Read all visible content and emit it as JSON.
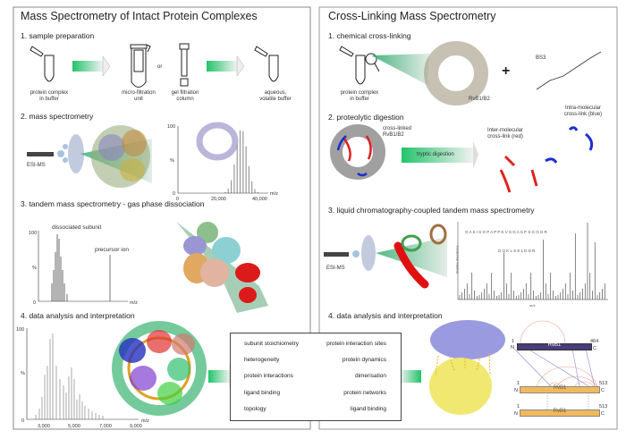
{
  "left_panel": {
    "title": "Mass Spectrometry of Intact Protein Complexes",
    "step1": {
      "title": "1. sample preparation",
      "labels": [
        "protein complex",
        "in buffer",
        "micro-filtration",
        "unit",
        "gel filtration",
        "column",
        "aqueous,",
        "volatile buffer"
      ],
      "or": "or"
    },
    "step2": {
      "title": "2. mass spectrometry",
      "esi": "ESI-MS",
      "y_ticks": [
        "100",
        "%",
        "0"
      ],
      "x_ticks": [
        "0",
        "20,000",
        "40,000"
      ],
      "x_unit": "m/z"
    },
    "step3": {
      "title": "3. tandem mass spectrometry - gas phase dissociation",
      "dissociated": "dissociated subunit",
      "precursor": "precursor ion",
      "y_ticks": [
        "100",
        "%",
        "0"
      ],
      "x_unit": "m/z"
    },
    "step4": {
      "title": "4. data analysis and interpretation",
      "y_ticks": [
        "100",
        "%",
        "0"
      ],
      "x_ticks": [
        "3,000",
        "5,000",
        "7,000",
        "9,000"
      ],
      "x_unit": "m/z"
    }
  },
  "right_panel": {
    "title": "Cross-Linking Mass Spectrometry",
    "step1": {
      "title": "1. chemical cross-linking",
      "tube_label": [
        "protein complex",
        "in buffer"
      ],
      "complex": "RvB1/B2",
      "plus": "+",
      "reagent": "BS3"
    },
    "step2": {
      "title": "2. proteolytic digestion",
      "complex_label": [
        "cross-linked",
        "RvB1/B2"
      ],
      "arrow": "tryptic digestion",
      "inter": [
        "Inter-molecular",
        "cross-link (red)"
      ],
      "intra": [
        "Intra-molecular",
        "cross-link (blue)"
      ]
    },
    "step3": {
      "title": "3. liquid chromatography-coupled tandem mass spectrometry",
      "esi": "ESI-MS",
      "peptide1": "G A S I S G P A P P K V S G A S P S G G D R",
      "peptide2": "D Q K L S E L D D R",
      "y_label": "Relative Abundance",
      "x_unit": "m/z"
    },
    "step4": {
      "title": "4. data analysis and interpretation",
      "bars": [
        {
          "name": "RvB1",
          "start": "1",
          "end": "464",
          "n": "N",
          "c": "C",
          "color": "#4a3d78"
        },
        {
          "name": "RvB1",
          "start": "1",
          "end": "513",
          "n": "N",
          "c": "C",
          "color": "#f2b95c"
        },
        {
          "name": "RvB1",
          "start": "1",
          "end": "513",
          "n": "N",
          "c": "C",
          "color": "#f2b95c"
        }
      ]
    }
  },
  "outcomes": {
    "left": [
      "subunit stoichiometry",
      "heterogeneity",
      "protein interactions",
      "ligand binding",
      "topology"
    ],
    "right": [
      "protein interaction sites",
      "protein dynamics",
      "dimerisation",
      "protein networks",
      "ligand binding"
    ]
  },
  "colors": {
    "arrow_green": "#22c46a",
    "inter_link": "#e02020",
    "intra_link": "#1a2fd0",
    "panel_border": "#888888"
  }
}
